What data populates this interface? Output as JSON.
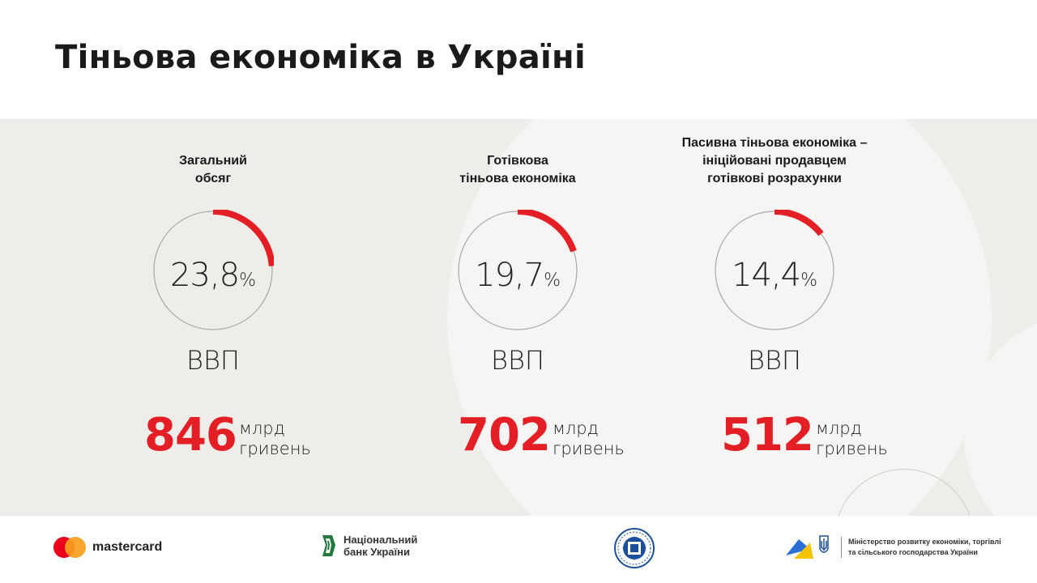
{
  "title": "Тіньова економіка в Україні",
  "stats": [
    {
      "title_lines": [
        "Загальний",
        "обсяг"
      ],
      "percent_value": "23,8",
      "percent_fraction": 0.238,
      "percent_symbol": "%",
      "gdp_label": "ВВП",
      "amount": "846",
      "unit_lines": [
        "млрд",
        "гривень"
      ]
    },
    {
      "title_lines": [
        "Готівкова",
        "тіньова економіка"
      ],
      "percent_value": "19,7",
      "percent_fraction": 0.197,
      "percent_symbol": "%",
      "gdp_label": "ВВП",
      "amount": "702",
      "unit_lines": [
        "млрд",
        "гривень"
      ]
    },
    {
      "title_lines": [
        "Пасивна тіньова економіка –",
        "ініційовані продавцем",
        "готівкові розрахунки"
      ],
      "percent_value": "14,4",
      "percent_fraction": 0.144,
      "percent_symbol": "%",
      "gdp_label": "ВВП",
      "amount": "512",
      "unit_lines": [
        "млрд",
        "гривень"
      ]
    }
  ],
  "footer": {
    "mastercard": "mastercard",
    "nbu_lines": [
      "Національний",
      "банк України"
    ],
    "ministry_lines": [
      "Міністерство розвитку економіки, торгівлі",
      "та сільського господарства України"
    ]
  },
  "colors": {
    "accent": "#e31e24",
    "panel": "#eeedea",
    "ring": "#a8a8a8"
  }
}
